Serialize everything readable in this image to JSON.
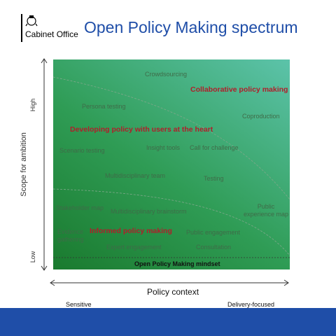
{
  "header": {
    "organisation": "Cabinet Office",
    "title": "Open Policy Making spectrum"
  },
  "axes": {
    "y_title": "Scope for ambition",
    "y_high": "High",
    "y_low": "Low",
    "x_title": "Policy context",
    "x_left": "Sensitive",
    "x_right": "Delivery-focused"
  },
  "zones": {
    "collaborative": "Collaborative policy making",
    "developing": "Developing policy with users at the heart",
    "informed": "Informed policy making",
    "mindset": "Open Policy Making mindset"
  },
  "items": {
    "crowdsourcing": "Crowdsourcing",
    "persona_testing": "Persona testing",
    "coproduction": "Coproduction",
    "scenario_testing": "Scenario testing",
    "insight_tools": "Insight tools",
    "call_for_challenge": "Call for challenge",
    "multidisciplinary_team": "Multidisciplinary team",
    "testing": "Testing",
    "stakeholder_map": "Stakeholder map",
    "multidisciplinary_brainstorm": "Multidisciplinary brainstorm",
    "public_experience_map_1": "Public",
    "public_experience_map_2": "experience map",
    "evidence_gathering_1": "Evidence",
    "evidence_gathering_2": "gathering",
    "public_engagement": "Public engagement",
    "expert_engagement": "Expert engagement",
    "consultation": "Consultation"
  },
  "colors": {
    "title_blue": "#1f4ea8",
    "highlight_red": "#b01e2a",
    "green_dark": "#1a7a2e",
    "green_light": "#5cc3aa"
  }
}
